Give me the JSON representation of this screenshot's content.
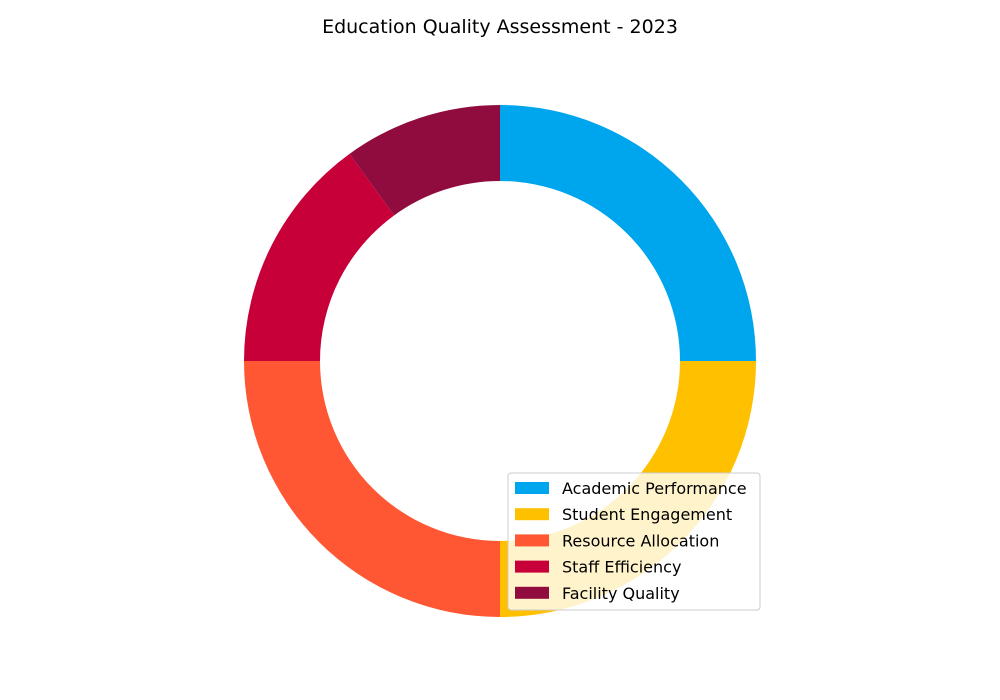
{
  "chart_data": {
    "type": "pie",
    "donut": true,
    "title": "Education Quality Assessment - 2023",
    "categories": [
      "Academic Performance",
      "Student Engagement",
      "Resource Allocation",
      "Staff Efficiency",
      "Facility Quality"
    ],
    "values": [
      25,
      25,
      25,
      15,
      10
    ],
    "colors": [
      "#00A6ED",
      "#FFC000",
      "#FF5733",
      "#C70039",
      "#900C3F"
    ],
    "start_angle_deg": 90,
    "direction": "clockwise",
    "legend_position": "lower-right"
  }
}
